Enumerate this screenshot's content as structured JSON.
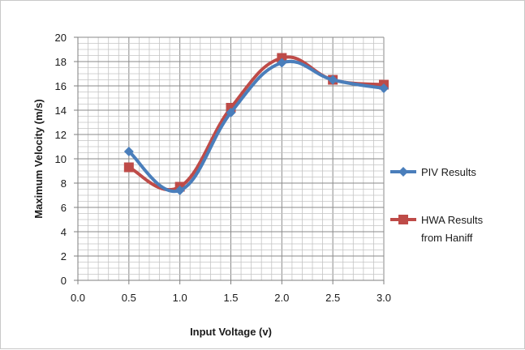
{
  "chart_data": {
    "type": "line",
    "title": "",
    "xlabel": "Input Voltage (v)",
    "ylabel": "Maximum Velocity (m/s)",
    "xlim": [
      0,
      3
    ],
    "ylim": [
      0,
      20
    ],
    "x_ticks": [
      "0.0",
      "0.5",
      "1.0",
      "1.5",
      "2.0",
      "2.5",
      "3.0"
    ],
    "y_ticks": [
      "0",
      "2",
      "4",
      "6",
      "8",
      "10",
      "12",
      "14",
      "16",
      "18",
      "20"
    ],
    "grid": true,
    "smooth": true,
    "legend_position": "right",
    "series": [
      {
        "name": "PIV Results",
        "color": "#4a7ebb",
        "marker": "diamond",
        "x": [
          0.5,
          1.0,
          1.5,
          2.0,
          2.5,
          3.0
        ],
        "y": [
          10.6,
          7.4,
          13.8,
          17.9,
          16.5,
          15.8
        ]
      },
      {
        "name": "HWA Results from Haniff",
        "color": "#be4b48",
        "marker": "square",
        "x": [
          0.5,
          1.0,
          1.5,
          2.0,
          2.5,
          3.0
        ],
        "y": [
          9.3,
          7.7,
          14.2,
          18.3,
          16.5,
          16.1
        ]
      }
    ],
    "legend": [
      {
        "lines": [
          "PIV Results"
        ]
      },
      {
        "lines": [
          "HWA Results",
          "from Haniff"
        ]
      }
    ]
  }
}
